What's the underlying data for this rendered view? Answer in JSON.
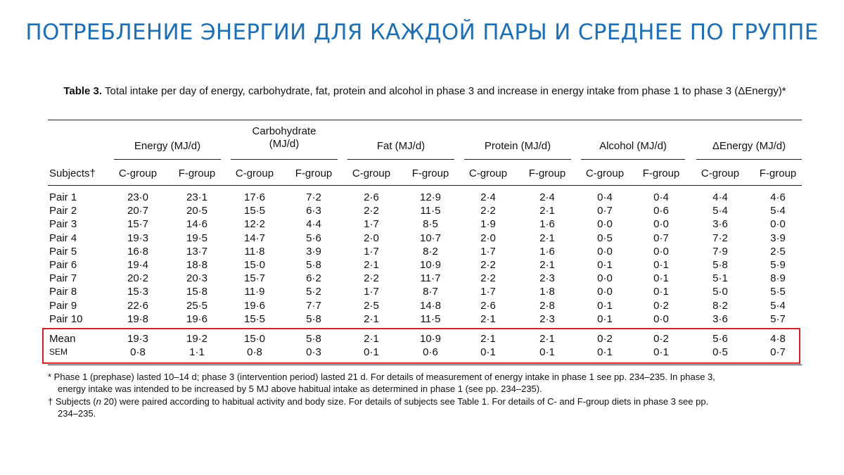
{
  "slide_title": "ПОТРЕБЛЕНИЕ ЭНЕРГИИ ДЛЯ КАЖДОЙ ПАРЫ И СРЕДНЕЕ ПО ГРУППЕ",
  "table": {
    "caption_label": "Table 3.",
    "caption_text": "Total intake per day of energy, carbohydrate, fat, protein and alcohol in phase 3 and increase in energy intake from phase 1 to phase 3 (ΔEnergy)*",
    "group_headers": [
      "Energy (MJ/d)",
      "Carbohydrate (MJ/d)",
      "Fat (MJ/d)",
      "Protein (MJ/d)",
      "Alcohol (MJ/d)",
      "ΔEnergy (MJ/d)"
    ],
    "subjects_header": "Subjects†",
    "sub_headers": [
      "C-group",
      "F-group",
      "C-group",
      "F-group",
      "C-group",
      "F-group",
      "C-group",
      "F-group",
      "C-group",
      "F-group",
      "C-group",
      "F-group"
    ],
    "rows": [
      {
        "label": "Pair 1",
        "values": [
          "23·0",
          "23·1",
          "17·6",
          "7·2",
          "2·6",
          "12·9",
          "2·4",
          "2·4",
          "0·4",
          "0·4",
          "4·4",
          "4·6"
        ]
      },
      {
        "label": "Pair 2",
        "values": [
          "20·7",
          "20·5",
          "15·5",
          "6·3",
          "2·2",
          "11·5",
          "2·2",
          "2·1",
          "0·7",
          "0·6",
          "5·4",
          "5·4"
        ]
      },
      {
        "label": "Pair 3",
        "values": [
          "15·7",
          "14·6",
          "12·2",
          "4·4",
          "1·7",
          "8·5",
          "1·9",
          "1·6",
          "0·0",
          "0·0",
          "3·6",
          "0·0"
        ]
      },
      {
        "label": "Pair 4",
        "values": [
          "19·3",
          "19·5",
          "14·7",
          "5·6",
          "2·0",
          "10·7",
          "2·0",
          "2·1",
          "0·5",
          "0·7",
          "7·2",
          "3·9"
        ]
      },
      {
        "label": "Pair 5",
        "values": [
          "16·8",
          "13·7",
          "11·8",
          "3·9",
          "1·7",
          "8·2",
          "1·7",
          "1·6",
          "0·0",
          "0·0",
          "7·9",
          "2·5"
        ]
      },
      {
        "label": "Pair 6",
        "values": [
          "19·4",
          "18·8",
          "15·0",
          "5·8",
          "2·1",
          "10·9",
          "2·2",
          "2·1",
          "0·1",
          "0·1",
          "5·8",
          "5·9"
        ]
      },
      {
        "label": "Pair 7",
        "values": [
          "20·2",
          "20·3",
          "15·7",
          "6·2",
          "2·2",
          "11·7",
          "2·2",
          "2·3",
          "0·0",
          "0·1",
          "5·1",
          "8·9"
        ]
      },
      {
        "label": "Pair 8",
        "values": [
          "15·3",
          "15·8",
          "11·9",
          "5·2",
          "1·7",
          "8·7",
          "1·7",
          "1·8",
          "0·0",
          "0·1",
          "5·0",
          "5·5"
        ]
      },
      {
        "label": "Pair 9",
        "values": [
          "22·6",
          "25·5",
          "19·6",
          "7·7",
          "2·5",
          "14·8",
          "2·6",
          "2·8",
          "0·1",
          "0·2",
          "8·2",
          "5·4"
        ]
      },
      {
        "label": "Pair 10",
        "values": [
          "19·8",
          "19·6",
          "15·5",
          "5·8",
          "2·1",
          "11·5",
          "2·1",
          "2·3",
          "0·1",
          "0·0",
          "3·6",
          "5·7"
        ]
      }
    ],
    "summary_rows": [
      {
        "label": "Mean",
        "values": [
          "19·3",
          "19·2",
          "15·0",
          "5·8",
          "2·1",
          "10·9",
          "2·1",
          "2·1",
          "0·2",
          "0·2",
          "5·6",
          "4·8"
        ]
      },
      {
        "label": "SEM",
        "values": [
          "0·8",
          "1·1",
          "0·8",
          "0·3",
          "0·1",
          "0·6",
          "0·1",
          "0·1",
          "0·1",
          "0·1",
          "0·5",
          "0·7"
        ]
      }
    ],
    "footnotes": {
      "f1_line1": "* Phase 1 (prephase) lasted 10–14 d; phase 3 (intervention period) lasted 21 d. For details of measurement of energy intake in phase 1 see pp. 234–235. In phase 3,",
      "f1_line2": "energy intake was intended to be increased by 5 MJ above habitual intake as determined in phase 1 (see pp. 234–235).",
      "f2_line1_a": "† Subjects (",
      "f2_line1_n": "n",
      "f2_line1_b": " 20) were paired according to habitual activity and body size. For details of subjects see Table 1. For details of C- and F-group diets in phase 3 see pp.",
      "f2_line2": "234–235."
    }
  },
  "colors": {
    "title": "#1f6fb5",
    "highlight": "#d4202a"
  }
}
